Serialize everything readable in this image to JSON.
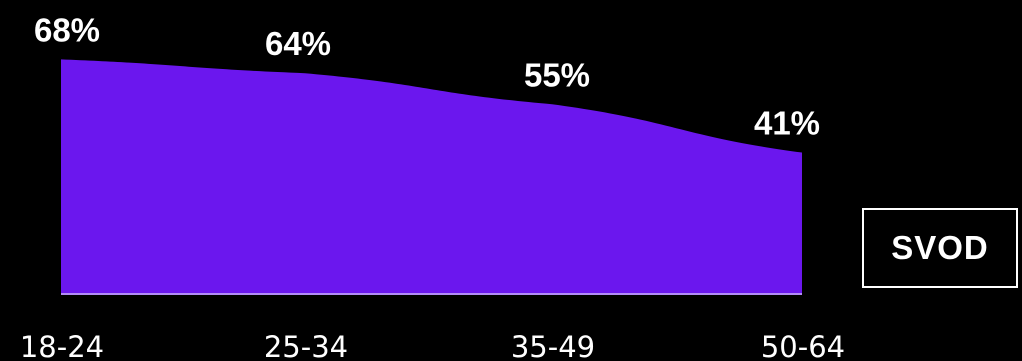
{
  "chart_data": {
    "type": "area",
    "categories": [
      "18-24",
      "25-34",
      "35-49",
      "50-64"
    ],
    "series": [
      {
        "name": "SVOD",
        "values": [
          68,
          64,
          55,
          41
        ],
        "value_labels": [
          "68%",
          "64%",
          "55%",
          "41%"
        ],
        "color": "#6b17ee"
      }
    ],
    "ylim": [
      0,
      100
    ],
    "grid": false,
    "legend": "right"
  },
  "colors": {
    "background": "#000000",
    "text": "#ffffff",
    "area_fill": "#6b17ee",
    "baseline": "#b38cf7"
  }
}
